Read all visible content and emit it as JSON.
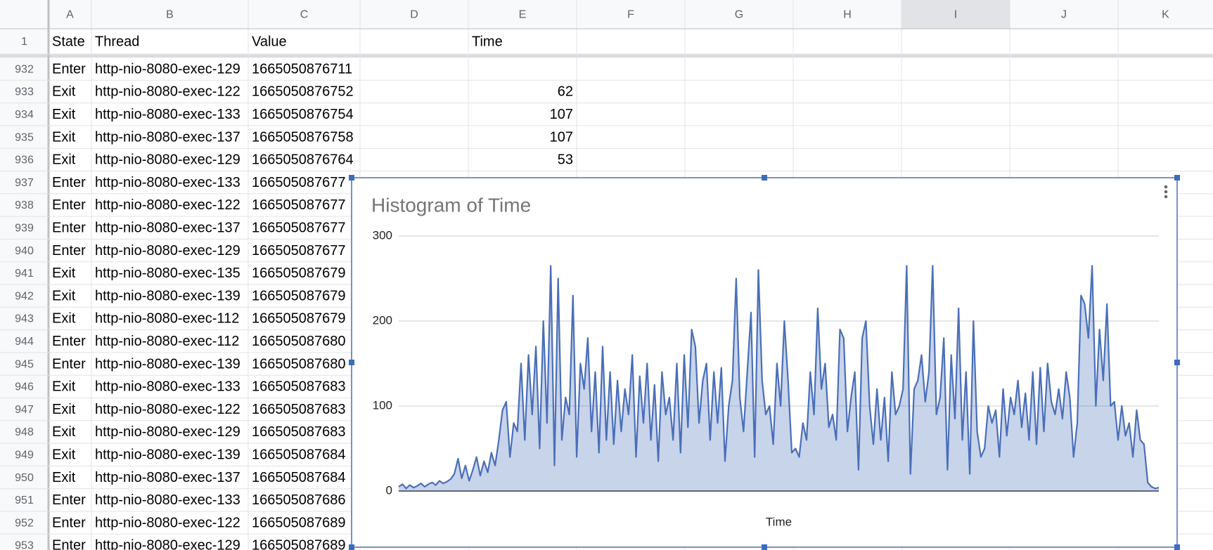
{
  "sheet": {
    "columns": [
      "A",
      "B",
      "C",
      "D",
      "E",
      "F",
      "G",
      "H",
      "I",
      "J",
      "K"
    ],
    "header_row": {
      "row": 1,
      "A": "State",
      "B": "Thread",
      "C": "Value",
      "E": "Time"
    },
    "rows": [
      {
        "row": 932,
        "A": "Enter",
        "B": "http-nio-8080-exec-129",
        "C": "1665050876711"
      },
      {
        "row": 933,
        "A": "Exit",
        "B": "http-nio-8080-exec-122",
        "C": "1665050876752",
        "E": 62
      },
      {
        "row": 934,
        "A": "Exit",
        "B": "http-nio-8080-exec-133",
        "C": "1665050876754",
        "E": 107
      },
      {
        "row": 935,
        "A": "Exit",
        "B": "http-nio-8080-exec-137",
        "C": "1665050876758",
        "E": 107
      },
      {
        "row": 936,
        "A": "Exit",
        "B": "http-nio-8080-exec-129",
        "C": "1665050876764",
        "E": 53
      },
      {
        "row": 937,
        "A": "Enter",
        "B": "http-nio-8080-exec-133",
        "C": "166505087677"
      },
      {
        "row": 938,
        "A": "Enter",
        "B": "http-nio-8080-exec-122",
        "C": "166505087677"
      },
      {
        "row": 939,
        "A": "Enter",
        "B": "http-nio-8080-exec-137",
        "C": "166505087677"
      },
      {
        "row": 940,
        "A": "Enter",
        "B": "http-nio-8080-exec-129",
        "C": "166505087677"
      },
      {
        "row": 941,
        "A": "Exit",
        "B": "http-nio-8080-exec-135",
        "C": "166505087679"
      },
      {
        "row": 942,
        "A": "Exit",
        "B": "http-nio-8080-exec-139",
        "C": "166505087679"
      },
      {
        "row": 943,
        "A": "Exit",
        "B": "http-nio-8080-exec-112",
        "C": "166505087679"
      },
      {
        "row": 944,
        "A": "Enter",
        "B": "http-nio-8080-exec-112",
        "C": "166505087680"
      },
      {
        "row": 945,
        "A": "Enter",
        "B": "http-nio-8080-exec-139",
        "C": "166505087680"
      },
      {
        "row": 946,
        "A": "Exit",
        "B": "http-nio-8080-exec-133",
        "C": "166505087683"
      },
      {
        "row": 947,
        "A": "Exit",
        "B": "http-nio-8080-exec-122",
        "C": "166505087683"
      },
      {
        "row": 948,
        "A": "Exit",
        "B": "http-nio-8080-exec-129",
        "C": "166505087683"
      },
      {
        "row": 949,
        "A": "Exit",
        "B": "http-nio-8080-exec-139",
        "C": "166505087684"
      },
      {
        "row": 950,
        "A": "Exit",
        "B": "http-nio-8080-exec-137",
        "C": "166505087684"
      },
      {
        "row": 951,
        "A": "Enter",
        "B": "http-nio-8080-exec-133",
        "C": "166505087686"
      },
      {
        "row": 952,
        "A": "Enter",
        "B": "http-nio-8080-exec-122",
        "C": "166505087689"
      },
      {
        "row": 953,
        "A": "Enter",
        "B": "http-nio-8080-exec-129",
        "C": "166505087689"
      }
    ]
  },
  "chart_data": {
    "type": "area",
    "title": "Histogram of Time",
    "x_label": "Time",
    "color": "#4a6fb8",
    "ylim": [
      0,
      300
    ],
    "yticks": [
      0,
      100,
      200,
      300
    ],
    "grid": true,
    "values": [
      5,
      8,
      3,
      7,
      4,
      6,
      9,
      5,
      8,
      10,
      7,
      12,
      9,
      11,
      14,
      20,
      38,
      15,
      30,
      12,
      25,
      40,
      18,
      35,
      22,
      45,
      30,
      60,
      95,
      105,
      40,
      80,
      70,
      150,
      60,
      160,
      90,
      170,
      50,
      200,
      80,
      265,
      30,
      250,
      60,
      110,
      90,
      230,
      40,
      150,
      120,
      180,
      70,
      140,
      45,
      170,
      60,
      140,
      55,
      130,
      70,
      120,
      90,
      160,
      40,
      135,
      80,
      150,
      60,
      125,
      35,
      140,
      90,
      110,
      60,
      150,
      45,
      160,
      75,
      190,
      170,
      80,
      130,
      150,
      60,
      140,
      80,
      145,
      35,
      100,
      130,
      250,
      110,
      70,
      140,
      210,
      40,
      260,
      130,
      90,
      100,
      55,
      150,
      100,
      200,
      130,
      45,
      50,
      40,
      80,
      60,
      140,
      90,
      215,
      120,
      150,
      75,
      90,
      60,
      190,
      180,
      70,
      110,
      140,
      25,
      180,
      200,
      100,
      55,
      120,
      60,
      110,
      35,
      140,
      90,
      100,
      120,
      265,
      20,
      120,
      130,
      160,
      105,
      140,
      265,
      90,
      110,
      180,
      25,
      160,
      85,
      215,
      60,
      140,
      20,
      200,
      70,
      40,
      50,
      100,
      80,
      95,
      40,
      120,
      65,
      110,
      90,
      130,
      75,
      115,
      60,
      140,
      55,
      145,
      70,
      150,
      105,
      90,
      120,
      85,
      140,
      110,
      40,
      80,
      230,
      220,
      180,
      265,
      100,
      190,
      130,
      220,
      100,
      105,
      60,
      100,
      65,
      80,
      40,
      95,
      60,
      55,
      10,
      5,
      3,
      4
    ]
  }
}
